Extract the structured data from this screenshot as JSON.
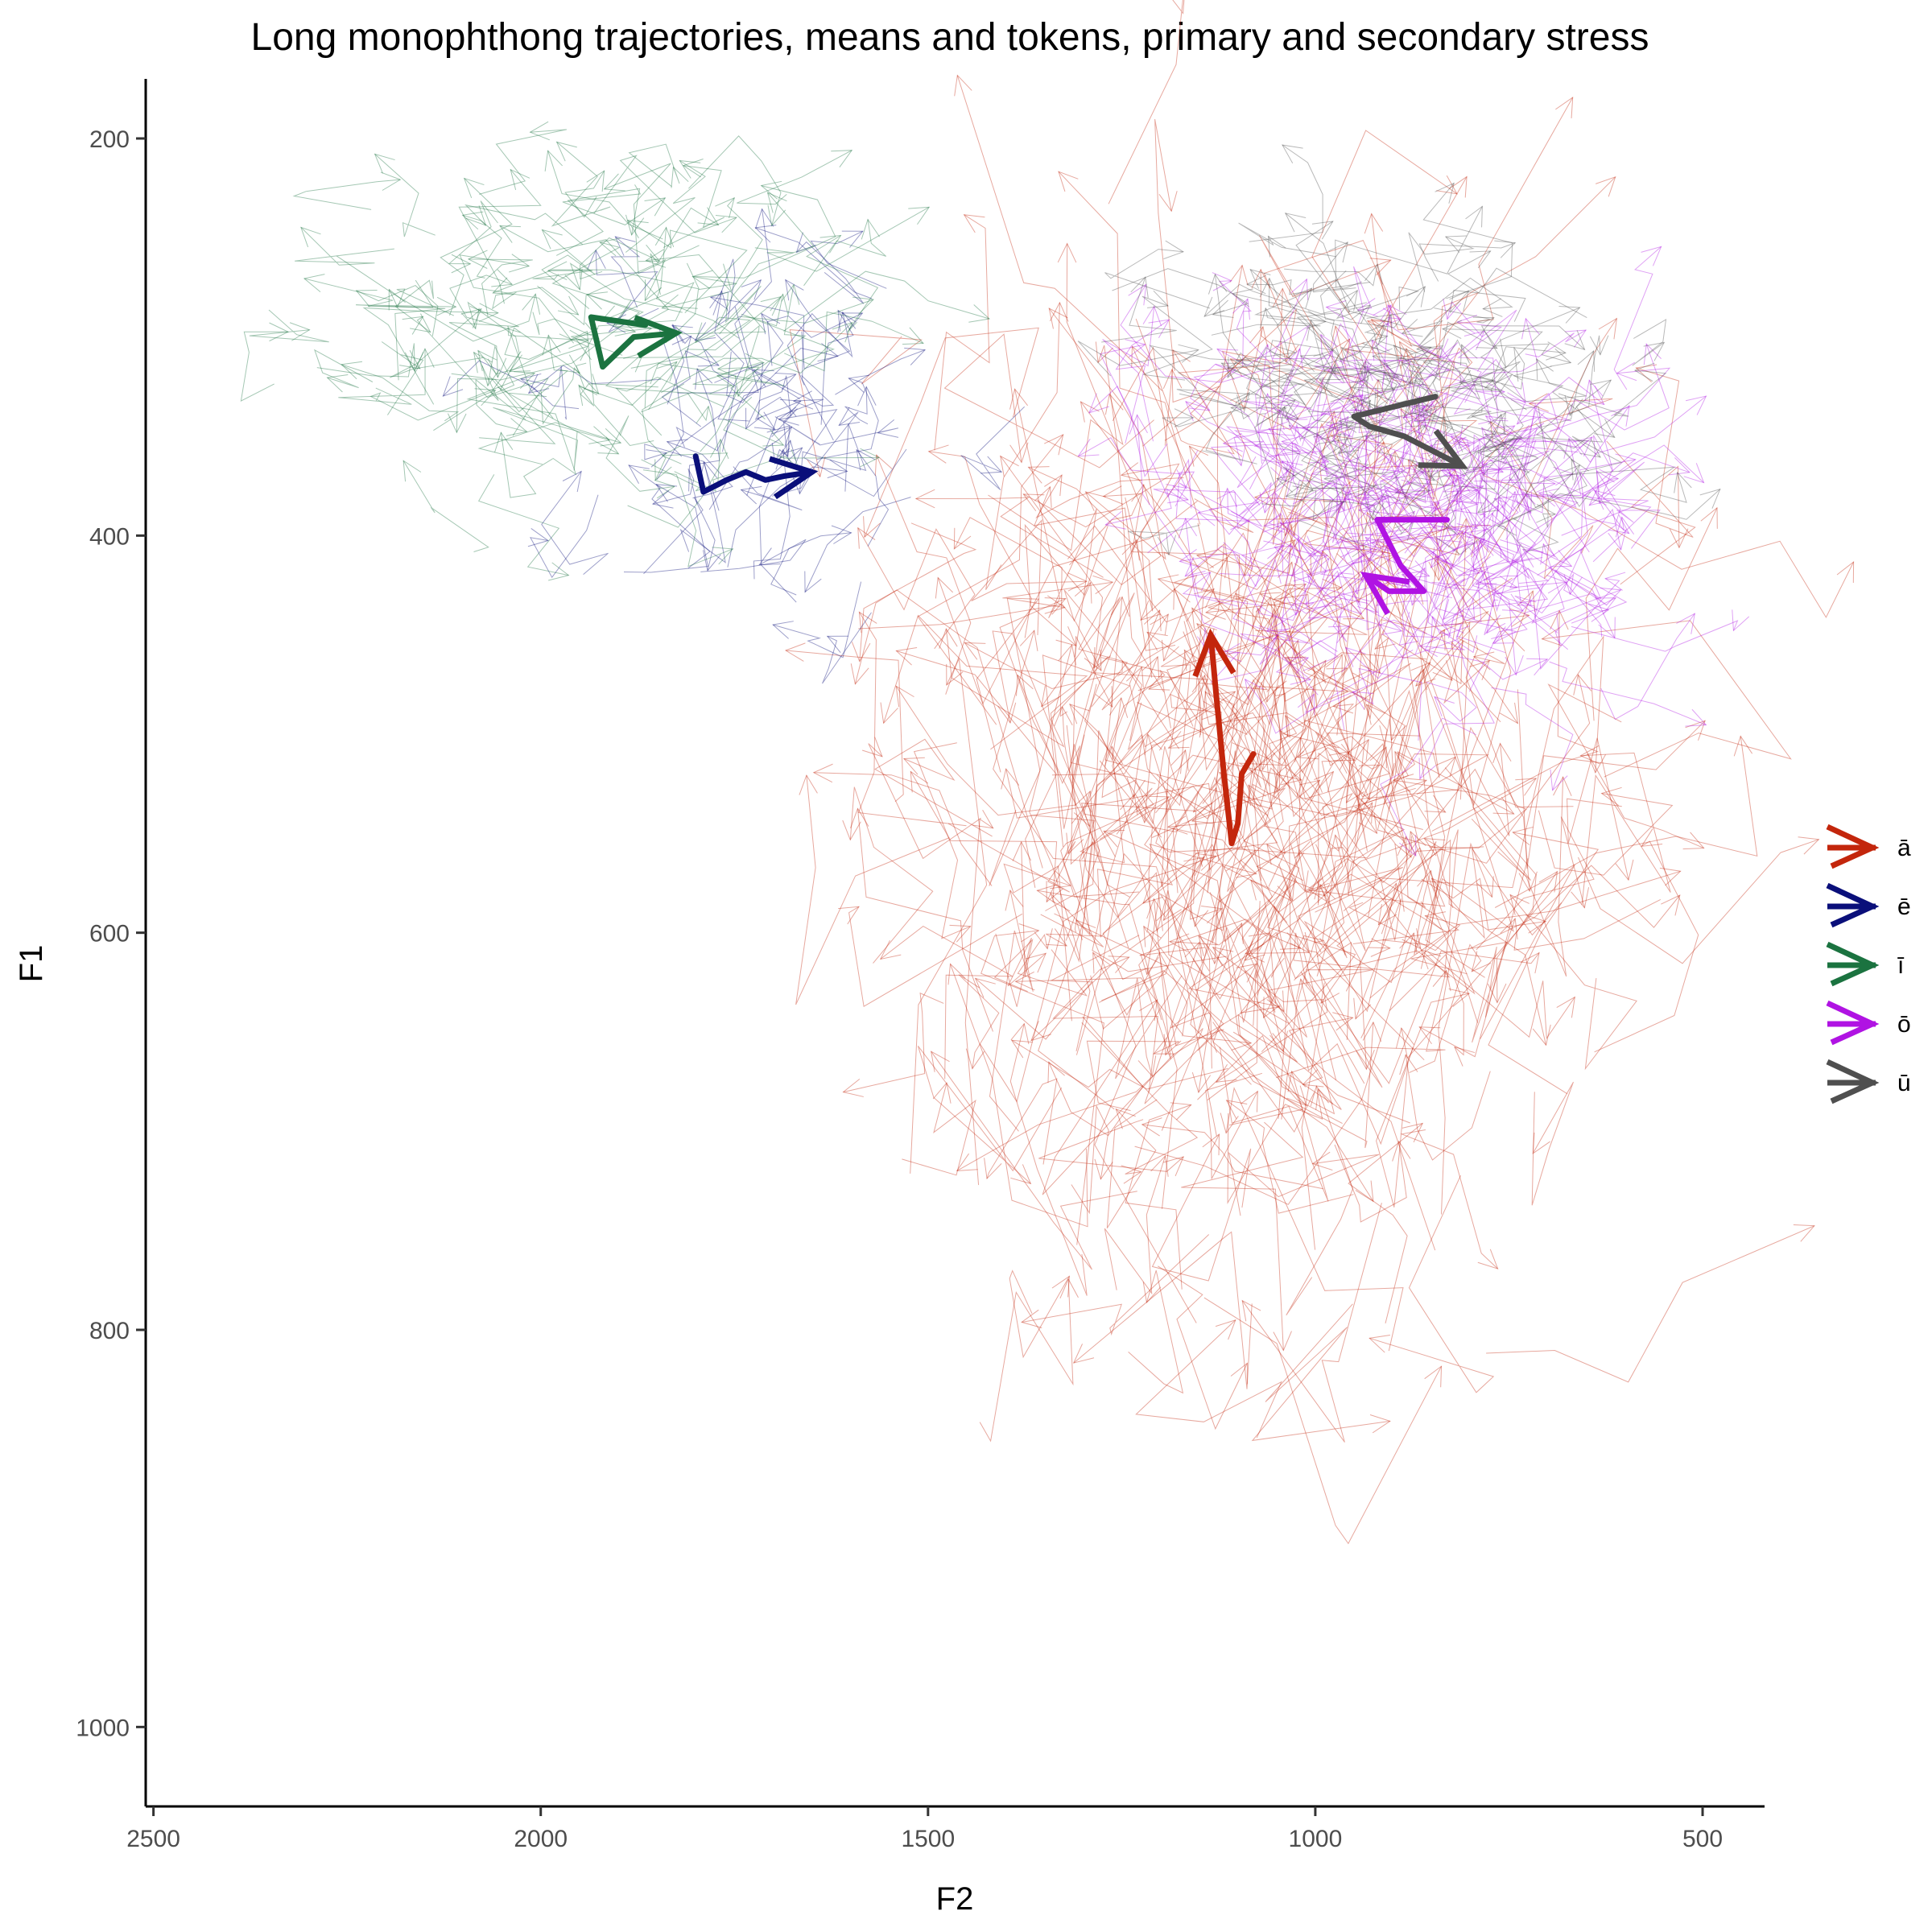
{
  "chart_data": {
    "type": "line",
    "title": "Long monophthong trajectories, means and tokens, primary and secondary stress",
    "xlabel": "F2",
    "ylabel": "F1",
    "x_reversed": true,
    "y_reversed": true,
    "xlim": [
      2510,
      420
    ],
    "ylim": [
      170,
      1040
    ],
    "x_ticks": [
      2500,
      2000,
      1500,
      1000,
      500
    ],
    "y_ticks": [
      200,
      400,
      600,
      800,
      1000
    ],
    "grid": false,
    "legend_position": "right",
    "series": [
      {
        "name": "ā",
        "color": "#c3260c",
        "mean_trajectory": [
          [
            1080,
            510
          ],
          [
            1095,
            520
          ],
          [
            1100,
            545
          ],
          [
            1108,
            555
          ],
          [
            1118,
            520
          ],
          [
            1128,
            480
          ],
          [
            1135,
            450
          ]
        ],
        "token_cloud": {
          "f2_center": 1080,
          "f2_spread": 200,
          "f1_center": 560,
          "f1_spread": 110,
          "count": 380
        }
      },
      {
        "name": "ē",
        "color": "#0a0f7a",
        "mean_trajectory": [
          [
            1800,
            360
          ],
          [
            1790,
            378
          ],
          [
            1760,
            372
          ],
          [
            1735,
            368
          ],
          [
            1710,
            372
          ],
          [
            1685,
            370
          ],
          [
            1650,
            368
          ]
        ],
        "token_cloud": {
          "f2_center": 1730,
          "f2_spread": 120,
          "f1_center": 360,
          "f1_spread": 40,
          "count": 60
        }
      },
      {
        "name": "ī",
        "color": "#1b7340",
        "mean_trajectory": [
          [
            1865,
            294
          ],
          [
            1935,
            290
          ],
          [
            1920,
            315
          ],
          [
            1880,
            300
          ],
          [
            1825,
            298
          ]
        ],
        "token_cloud": {
          "f2_center": 1960,
          "f2_spread": 160,
          "f1_center": 300,
          "f1_spread": 40,
          "count": 110
        }
      },
      {
        "name": "ō",
        "color": "#b013e3",
        "mean_trajectory": [
          [
            830,
            392
          ],
          [
            920,
            392
          ],
          [
            890,
            415
          ],
          [
            860,
            428
          ],
          [
            905,
            428
          ],
          [
            935,
            420
          ]
        ],
        "token_cloud": {
          "f2_center": 880,
          "f2_spread": 130,
          "f1_center": 400,
          "f1_spread": 45,
          "count": 230
        }
      },
      {
        "name": "ū",
        "color": "#4f4f4f",
        "mean_trajectory": [
          [
            845,
            330
          ],
          [
            950,
            340
          ],
          [
            930,
            345
          ],
          [
            885,
            350
          ],
          [
            810,
            365
          ]
        ],
        "token_cloud": {
          "f2_center": 880,
          "f2_spread": 150,
          "f1_center": 330,
          "f1_spread": 35,
          "count": 120
        }
      }
    ]
  }
}
